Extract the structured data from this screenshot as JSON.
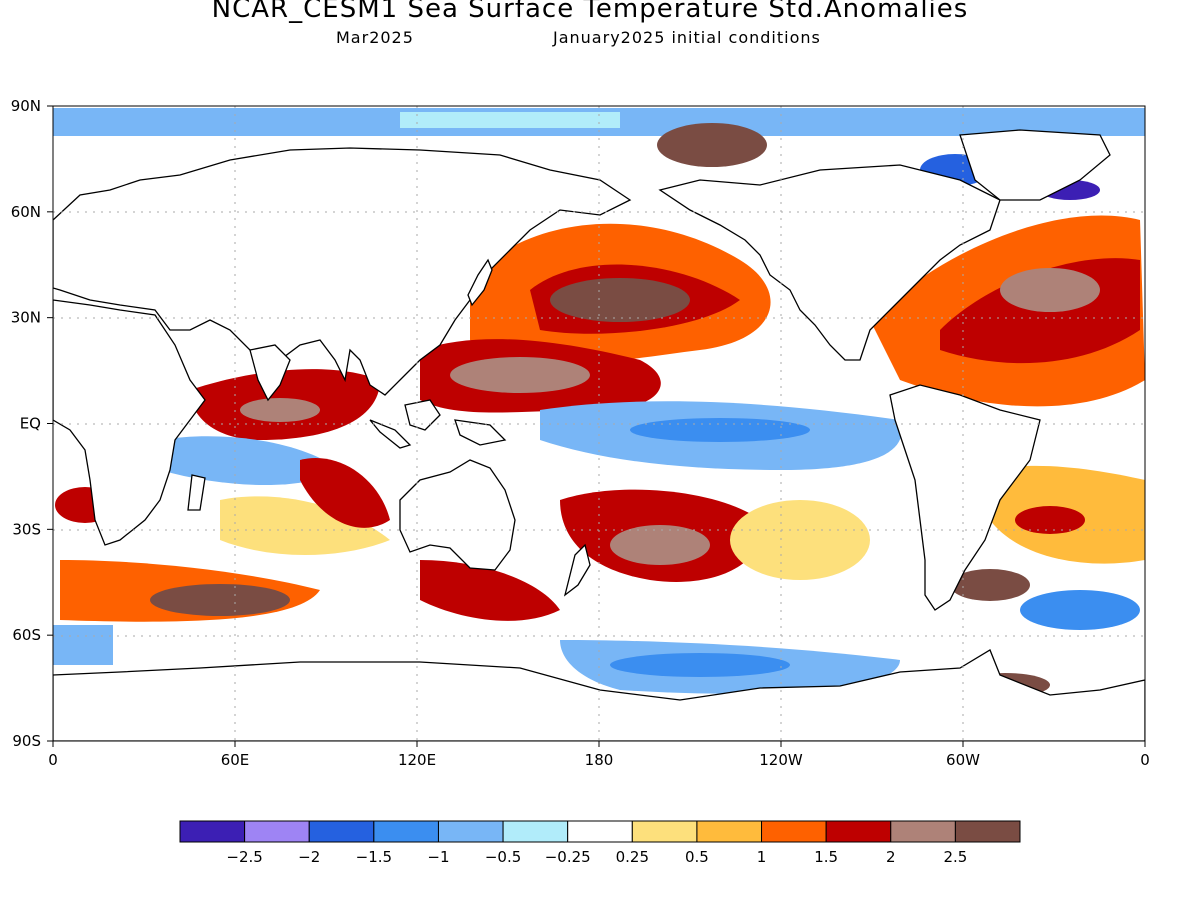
{
  "title": "NCAR_CESM1 Sea Surface Temperature Std.Anomalies",
  "subtitle_left": "Mar2025",
  "subtitle_right": "January2025 initial conditions",
  "lat_labels": [
    "90N",
    "60N",
    "30N",
    "EQ",
    "30S",
    "60S",
    "90S"
  ],
  "lon_labels": [
    "0",
    "60E",
    "120E",
    "180",
    "120W",
    "60W",
    "0"
  ],
  "colorbar": {
    "colors": [
      "#3c1fb4",
      "#9e84f4",
      "#2561e0",
      "#3b8ef0",
      "#78b6f6",
      "#b1ecfa",
      "#ffffff",
      "#fde07c",
      "#ffbb3c",
      "#fe6100",
      "#be0000",
      "#ae8278",
      "#7a4c43"
    ],
    "tick_labels": [
      "−2.5",
      "−2",
      "−1.5",
      "−1",
      "−0.5",
      "−0.25",
      "0.25",
      "0.5",
      "1",
      "1.5",
      "2",
      "2.5"
    ]
  }
}
